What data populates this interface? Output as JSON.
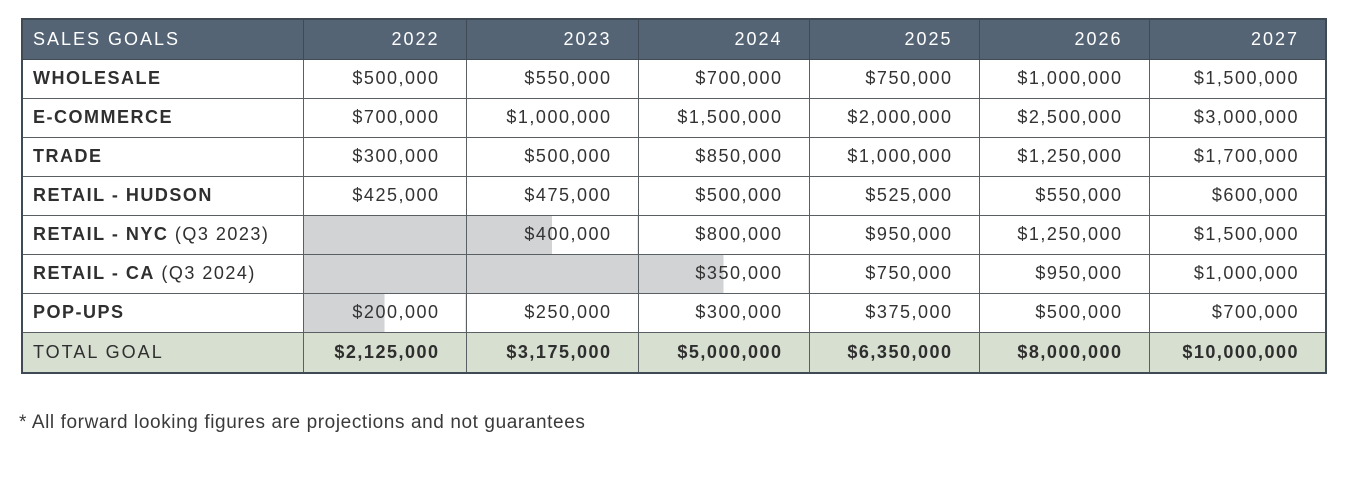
{
  "table": {
    "header": {
      "label": "SALES GOALS",
      "years": [
        "2022",
        "2023",
        "2024",
        "2025",
        "2026",
        "2027"
      ]
    },
    "rows": [
      {
        "label": "WHOLESALE",
        "suffix": "",
        "values": [
          "$500,000",
          "$550,000",
          "$700,000",
          "$750,000",
          "$1,000,000",
          "$1,500,000"
        ]
      },
      {
        "label": "E-COMMERCE",
        "suffix": "",
        "values": [
          "$700,000",
          "$1,000,000",
          "$1,500,000",
          "$2,000,000",
          "$2,500,000",
          "$3,000,000"
        ]
      },
      {
        "label": "TRADE",
        "suffix": "",
        "values": [
          "$300,000",
          "$500,000",
          "$850,000",
          "$1,000,000",
          "$1,250,000",
          "$1,700,000"
        ]
      },
      {
        "label": "RETAIL - HUDSON",
        "suffix": "",
        "values": [
          "$425,000",
          "$475,000",
          "$500,000",
          "$525,000",
          "$550,000",
          "$600,000"
        ]
      },
      {
        "label": "RETAIL - NYC",
        "suffix": " (Q3 2023)",
        "values": [
          "",
          "$400,000",
          "$800,000",
          "$950,000",
          "$1,250,000",
          "$1,500,000"
        ]
      },
      {
        "label": "RETAIL - CA",
        "suffix": " (Q3 2024)",
        "values": [
          "",
          "",
          "$350,000",
          "$750,000",
          "$950,000",
          "$1,000,000"
        ]
      },
      {
        "label": "POP-UPS",
        "suffix": "",
        "values": [
          "$200,000",
          "$250,000",
          "$300,000",
          "$375,000",
          "$500,000",
          "$700,000"
        ]
      }
    ],
    "total": {
      "label": "TOTAL GOAL",
      "values": [
        "$2,125,000",
        "$3,175,000",
        "$5,000,000",
        "$6,350,000",
        "$8,000,000",
        "$10,000,000"
      ]
    },
    "partial_fill": {
      "retail_nyc_2022": 1.0,
      "retail_nyc_2023": 0.5,
      "retail_ca_2022": 1.0,
      "retail_ca_2023": 1.0,
      "retail_ca_2024": 0.5,
      "pop_ups_2022": 0.5
    },
    "colors": {
      "header_bg": "#546475",
      "total_bg": "#d7dfd0",
      "shade": "#d1d3d4"
    }
  },
  "footnote": "* All forward looking figures are projections and not guarantees"
}
